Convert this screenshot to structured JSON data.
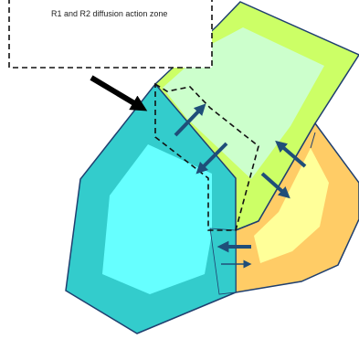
{
  "callout": {
    "text": "R1 and R2 diffusion action zone"
  },
  "colors": {
    "cyan_outer": "#33cccc",
    "cyan_inner": "#66ffff",
    "green_outer": "#ccff66",
    "green_inner": "#ccffcc",
    "orange_outer": "#ffcc66",
    "yellow_inner": "#ffff99",
    "outline": "#1f3f6f",
    "arrow": "#1f4e79",
    "pointer": "#000000"
  }
}
